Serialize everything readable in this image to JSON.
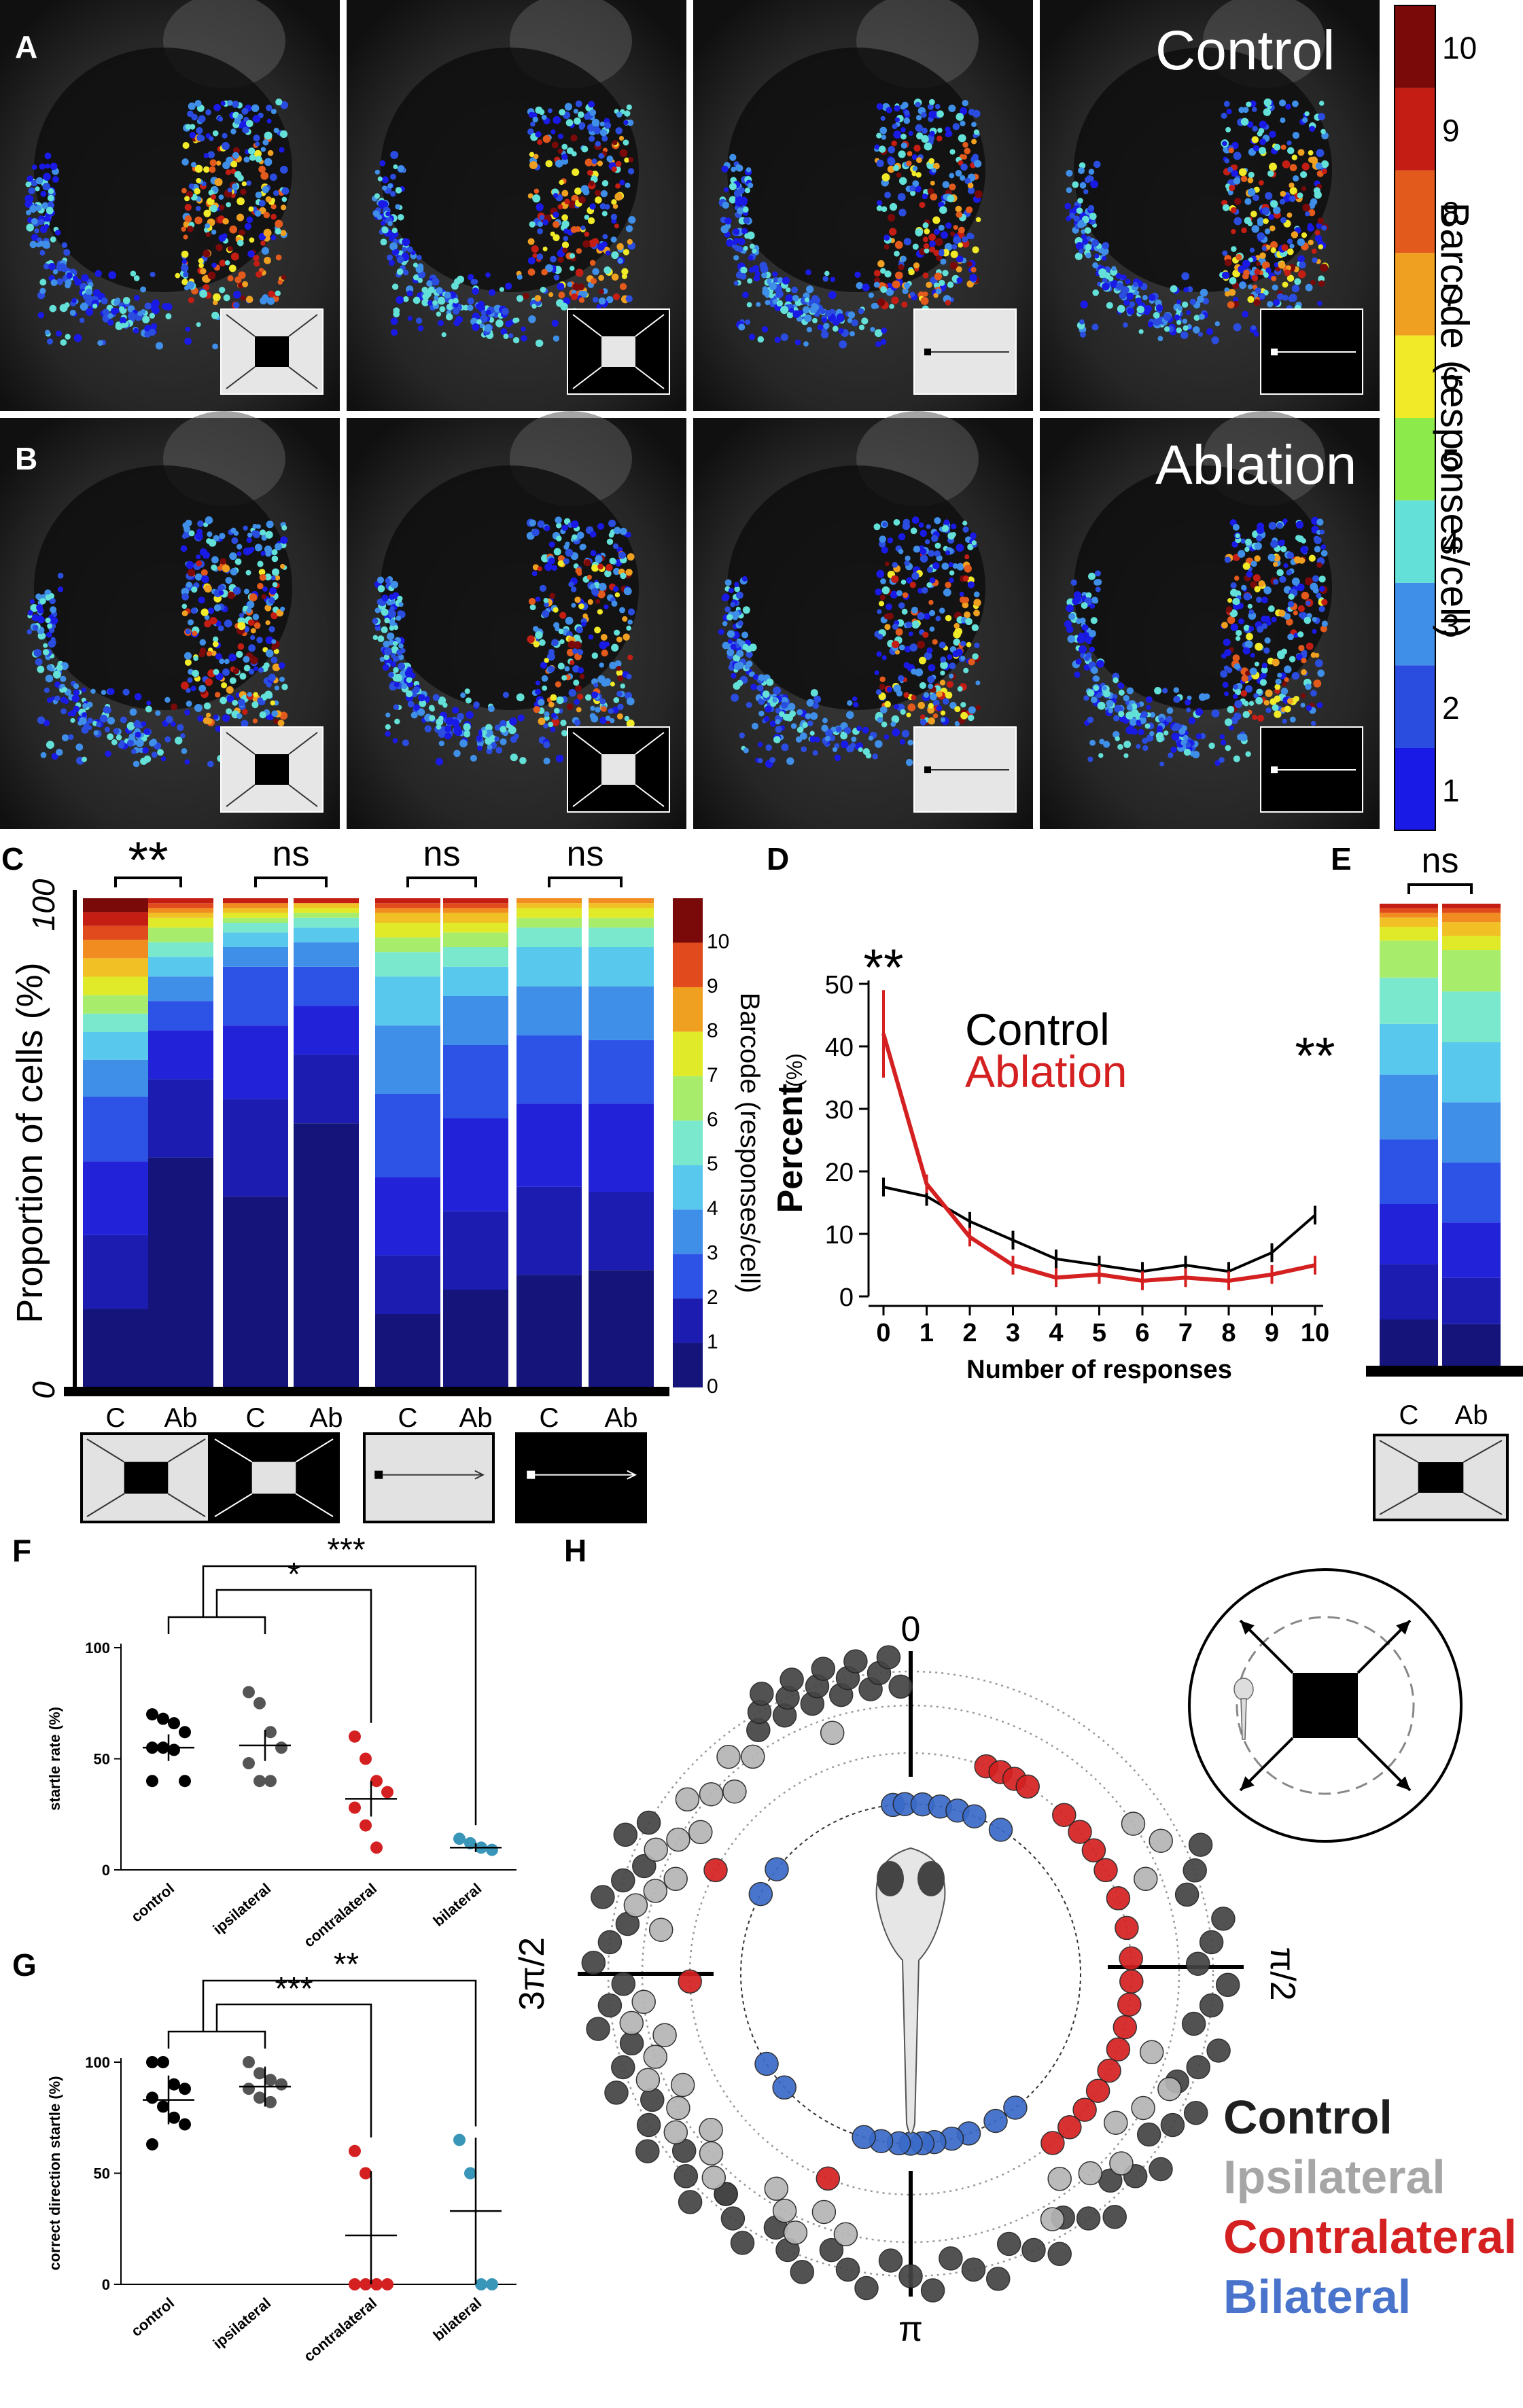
{
  "panel_letters": {
    "A": "A",
    "B": "B",
    "C": "C",
    "D": "D",
    "E": "E",
    "F": "F",
    "G": "G",
    "H": "H"
  },
  "rowA_label": "Control",
  "rowB_label": "Ablation",
  "colorbar": {
    "title": "Barcode (responses/cell)",
    "ticks": [
      "1",
      "2",
      "3",
      "4",
      "5",
      "6",
      "7",
      "8",
      "9",
      "10"
    ],
    "colors": [
      "#1a1ae6",
      "#2a4de0",
      "#3f8fe8",
      "#63e0d8",
      "#8cea4a",
      "#f0ea28",
      "#f0a020",
      "#e25a1c",
      "#c41e14",
      "#7a0a0a"
    ]
  },
  "chart_data": [
    {
      "id": "C",
      "type": "stacked-bar",
      "ylabel": "Proportion of cells (%)",
      "ytick_top": "100",
      "ytick_bottom": "0",
      "ylim": [
        0,
        100
      ],
      "colorbar_title": "Barcode (responses/cell)",
      "colorbar_ticks": [
        "0",
        "1",
        "2",
        "3",
        "4",
        "5",
        "6",
        "7",
        "8",
        "9",
        "10"
      ],
      "colors": [
        "#14147a",
        "#1c1cb0",
        "#2222d8",
        "#2c52e6",
        "#3f8fe8",
        "#58c8ec",
        "#7ae8cc",
        "#a8ec6c",
        "#e0ea28",
        "#f0c024",
        "#f08c20",
        "#e04a1c",
        "#c41e14",
        "#7a0a0a"
      ],
      "categories": [
        "C",
        "Ab",
        "C",
        "Ab",
        "C",
        "Ab",
        "C",
        "Ab"
      ],
      "significance": [
        "**",
        "ns",
        "ns",
        "ns"
      ],
      "bars": [
        [
          17,
          16,
          16,
          14,
          8,
          6,
          4,
          4,
          4,
          4,
          4,
          3,
          3,
          3
        ],
        [
          47,
          16,
          10,
          6,
          5,
          4,
          3,
          3,
          2,
          1,
          1,
          1,
          1,
          0
        ],
        [
          39,
          20,
          15,
          12,
          4,
          3,
          2,
          1,
          1,
          1,
          1,
          0,
          1,
          0
        ],
        [
          54,
          14,
          10,
          8,
          5,
          3,
          2,
          1,
          1,
          1,
          0,
          0,
          1,
          0
        ],
        [
          15,
          12,
          16,
          17,
          14,
          10,
          5,
          3,
          3,
          2,
          1,
          1,
          1,
          0
        ],
        [
          20,
          16,
          19,
          15,
          10,
          6,
          4,
          3,
          2,
          2,
          1,
          1,
          1,
          0
        ],
        [
          23,
          18,
          17,
          14,
          10,
          8,
          4,
          2,
          2,
          1,
          1,
          0,
          0,
          0
        ],
        [
          24,
          16,
          18,
          13,
          11,
          8,
          4,
          2,
          2,
          1,
          1,
          0,
          0,
          0
        ]
      ]
    },
    {
      "id": "D",
      "type": "line",
      "xlabel": "Number of responses",
      "ylabel": "Percent",
      "ylabel_unit": "(%)",
      "x": [
        0,
        1,
        2,
        3,
        4,
        5,
        6,
        7,
        8,
        9,
        10
      ],
      "ylim": [
        0,
        50
      ],
      "yticks": [
        0,
        10,
        20,
        30,
        40,
        50
      ],
      "series": [
        {
          "name": "Control",
          "color": "#000000",
          "values": [
            17.5,
            16,
            12,
            9,
            6,
            5,
            4,
            5,
            4,
            7,
            13
          ]
        },
        {
          "name": "Ablation",
          "color": "#d42020",
          "values": [
            42,
            18,
            9.5,
            5,
            3,
            3.5,
            2.5,
            3,
            2.5,
            3.5,
            5
          ]
        }
      ],
      "significance": [
        {
          "x": 0,
          "label": "**"
        },
        {
          "x": 10,
          "label": "**"
        }
      ]
    },
    {
      "id": "E",
      "type": "stacked-bar",
      "categories": [
        "C",
        "Ab"
      ],
      "significance": [
        "ns"
      ],
      "colors": [
        "#14147a",
        "#1c1cb0",
        "#2222d8",
        "#2c52e6",
        "#3f8fe8",
        "#58c8ec",
        "#7ae8cc",
        "#a8ec6c",
        "#e0ea28",
        "#f0c024",
        "#f08c20",
        "#e04a1c",
        "#c41e14",
        "#7a0a0a"
      ],
      "bars": [
        [
          10,
          12,
          13,
          14,
          14,
          11,
          10,
          8,
          3,
          2,
          1,
          1,
          1,
          0
        ],
        [
          9,
          10,
          12,
          13,
          13,
          13,
          11,
          9,
          3,
          3,
          2,
          1,
          1,
          0
        ]
      ]
    },
    {
      "id": "F",
      "type": "scatter",
      "ylabel": "startle rate (%)",
      "yticks": [
        0,
        50,
        100
      ],
      "ylim": [
        0,
        100
      ],
      "categories": [
        "control",
        "ipsilateral",
        "contralateral",
        "bilateral"
      ],
      "colors": [
        "#000000",
        "#555555",
        "#d42020",
        "#3a96b8"
      ],
      "points": [
        [
          70,
          68,
          66,
          62,
          55,
          55,
          54,
          40,
          40
        ],
        [
          80,
          75,
          62,
          55,
          48,
          40,
          40
        ],
        [
          60,
          50,
          40,
          35,
          28,
          20,
          10
        ],
        [
          14,
          12,
          10,
          9
        ]
      ],
      "means": [
        55,
        56,
        32,
        10
      ],
      "errors": [
        6,
        7,
        8,
        2
      ],
      "significance": [
        {
          "from": [
            0,
            1
          ],
          "to": 2,
          "label": "*"
        },
        {
          "from": [
            0,
            1
          ],
          "to": 3,
          "label": "***"
        }
      ]
    },
    {
      "id": "G",
      "type": "scatter",
      "ylabel": "correct direction startle (%)",
      "yticks": [
        0,
        50,
        100
      ],
      "ylim": [
        0,
        100
      ],
      "categories": [
        "control",
        "ipsilateral",
        "contralateral",
        "bilateral"
      ],
      "colors": [
        "#000000",
        "#555555",
        "#d42020",
        "#3a96b8"
      ],
      "points": [
        [
          100,
          100,
          90,
          88,
          84,
          80,
          75,
          72,
          63
        ],
        [
          100,
          95,
          92,
          90,
          88,
          84,
          82
        ],
        [
          60,
          50,
          0,
          0,
          0,
          0,
          0
        ],
        [
          65,
          50,
          0,
          0
        ]
      ],
      "means": [
        83,
        89,
        22,
        33
      ],
      "errors": [
        11,
        9,
        29,
        33
      ],
      "significance": [
        {
          "from": [
            0,
            1
          ],
          "to": 2,
          "label": "***"
        },
        {
          "from": [
            0,
            1
          ],
          "to": 3,
          "label": "**"
        }
      ]
    }
  ],
  "panelH": {
    "label_top": "0",
    "label_right": "π/2",
    "label_bottom": "π",
    "label_left": "3π/2",
    "legend": [
      {
        "label": "Control",
        "color": "#1f1f1f"
      },
      {
        "label": "Ipsilateral",
        "color": "#a6a6a6"
      },
      {
        "label": "Contralateral",
        "color": "#d42020"
      },
      {
        "label": "Bilateral",
        "color": "#4a74cc"
      }
    ],
    "rings": [
      {
        "group": "Control",
        "color": "#444444",
        "angles": [
          -32,
          -30,
          -28,
          -26,
          -24,
          -22,
          -20,
          -18,
          -16,
          -14,
          -12,
          -10,
          -8,
          -6,
          -4,
          -2,
          -60,
          -64,
          -68,
          -72,
          -76,
          -80,
          -84,
          -88,
          -92,
          -96,
          -100,
          -104,
          -108,
          -112,
          -116,
          -120,
          -124,
          -128,
          -132,
          -136,
          -140,
          -144,
          -148,
          -152,
          -156,
          -160,
          -164,
          -168,
          -172,
          -176,
          180,
          176,
          172,
          168,
          164,
          160,
          156,
          152,
          148,
          144,
          140,
          136,
          132,
          128,
          124,
          120,
          116,
          112,
          108,
          104,
          100,
          96,
          92,
          88,
          84,
          80,
          74,
          70,
          66,
          -140
        ]
      },
      {
        "group": "Ipsilateral",
        "color": "#b5b5b5",
        "angles": [
          -18,
          -36,
          -40,
          -44,
          -48,
          -52,
          -56,
          -60,
          -64,
          -68,
          -72,
          -76,
          -80,
          -96,
          -100,
          -104,
          -108,
          -112,
          -116,
          -120,
          -124,
          -128,
          -132,
          -136,
          -148,
          -152,
          -156,
          -160,
          -166,
          150,
          144,
          138,
          132,
          126,
          120,
          114,
          108,
          56,
          62,
          68
        ]
      },
      {
        "group": "Contralateral",
        "color": "#d42020",
        "angles": [
          20,
          24,
          28,
          32,
          44,
          50,
          56,
          62,
          70,
          78,
          86,
          92,
          98,
          104,
          110,
          116,
          122,
          128,
          134,
          140,
          -158,
          -62,
          -92
        ]
      },
      {
        "group": "Bilateral",
        "color": "#3a6bc8",
        "angles": [
          -6,
          -2,
          4,
          10,
          16,
          22,
          32,
          142,
          150,
          160,
          166,
          172,
          176,
          180,
          -176,
          -170,
          -164,
          -132,
          -122,
          -62,
          -52
        ]
      }
    ]
  }
}
